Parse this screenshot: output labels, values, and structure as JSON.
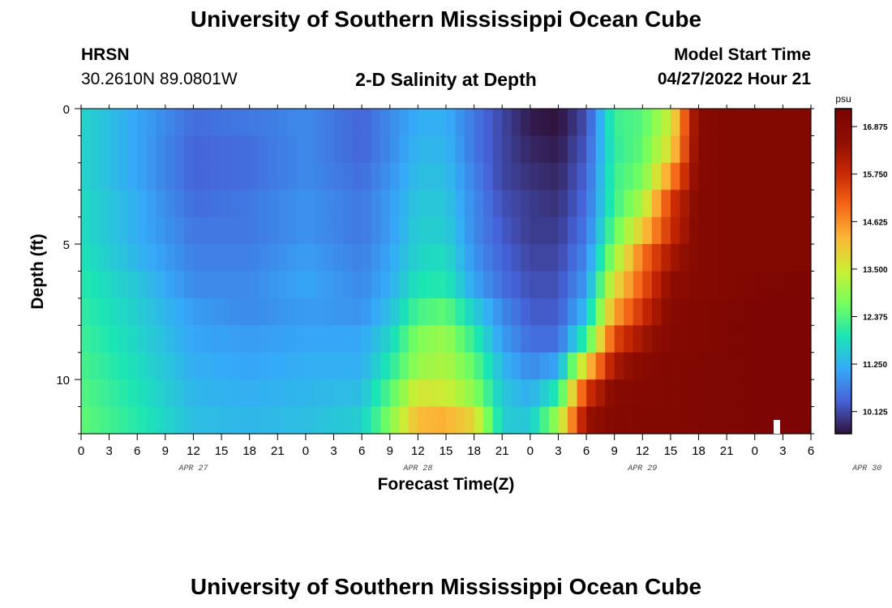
{
  "header": {
    "title": "University of Southern Mississippi Ocean Cube",
    "station": "HRSN",
    "coords": "30.2610N  89.0801W",
    "subtitle": "2-D Salinity at Depth",
    "model_label": "Model Start Time",
    "model_time": "04/27/2022 Hour 21"
  },
  "footer": {
    "title": "University of Southern Mississippi Ocean Cube"
  },
  "chart_data": {
    "type": "heatmap",
    "title": "2-D Salinity at Depth",
    "xlabel": "Forecast Time(Z)",
    "ylabel": "Depth (ft)",
    "x_ticks": [
      "0",
      "3",
      "6",
      "9",
      "12",
      "15",
      "18",
      "21",
      "0",
      "3",
      "6",
      "9",
      "12",
      "15",
      "18",
      "21",
      "0",
      "3",
      "6",
      "9",
      "12",
      "15",
      "18",
      "21",
      "0",
      "3",
      "6"
    ],
    "x_dates": [
      "APR 27",
      "APR 28",
      "APR 29",
      "APR 30"
    ],
    "y_ticks": [
      "0",
      "5",
      "10"
    ],
    "ylim": [
      0,
      12
    ],
    "colorbar": {
      "unit": "psu",
      "ticks": [
        "16.875",
        "15.750",
        "14.625",
        "13.500",
        "12.375",
        "11.250",
        "10.125"
      ],
      "min": 9.6,
      "max": 17.3
    },
    "depths_ft": [
      0.5,
      1.5,
      2.5,
      3.5,
      4.5,
      5.5,
      6.5,
      7.5,
      8.5,
      9.5,
      10.5,
      11.5
    ],
    "times_hours_from_apr27_00z": [
      0,
      6,
      12,
      18,
      24,
      30,
      33,
      36,
      39,
      42,
      45,
      48,
      51,
      54,
      57,
      60,
      63,
      66,
      69,
      72,
      78
    ],
    "salinity_psu": [
      [
        11.7,
        11.1,
        10.5,
        10.6,
        10.8,
        10.4,
        10.8,
        11.2,
        11.2,
        10.6,
        10.1,
        9.7,
        9.6,
        10.2,
        12.2,
        12.4,
        13.5,
        16.8,
        17.0,
        17.0,
        17.0
      ],
      [
        11.7,
        11.1,
        10.4,
        10.5,
        10.8,
        10.4,
        10.8,
        11.3,
        11.3,
        10.6,
        10.1,
        9.8,
        9.7,
        10.3,
        12.1,
        12.5,
        13.8,
        16.8,
        17.0,
        17.0,
        17.0
      ],
      [
        11.7,
        11.1,
        10.4,
        10.5,
        10.8,
        10.5,
        10.9,
        11.4,
        11.4,
        10.7,
        10.1,
        9.9,
        9.8,
        10.4,
        12.2,
        12.7,
        14.6,
        16.8,
        17.0,
        17.0,
        17.0
      ],
      [
        11.8,
        11.2,
        10.5,
        10.6,
        10.9,
        10.6,
        11.0,
        11.5,
        11.5,
        10.8,
        10.2,
        10.0,
        9.9,
        10.5,
        12.2,
        13.2,
        15.5,
        16.9,
        17.0,
        17.0,
        17.0
      ],
      [
        11.8,
        11.2,
        10.6,
        10.6,
        10.9,
        10.6,
        11.0,
        11.6,
        11.6,
        10.8,
        10.3,
        10.0,
        10.0,
        10.6,
        12.5,
        14.0,
        15.7,
        16.9,
        17.0,
        17.0,
        17.0
      ],
      [
        11.9,
        11.3,
        10.7,
        10.7,
        11.0,
        10.7,
        11.1,
        11.7,
        11.8,
        10.9,
        10.4,
        10.1,
        10.1,
        10.8,
        13.0,
        14.9,
        16.2,
        16.9,
        17.0,
        17.0,
        17.0
      ],
      [
        12.0,
        11.5,
        10.8,
        10.8,
        11.1,
        10.8,
        11.2,
        11.9,
        12.0,
        11.1,
        10.5,
        10.2,
        10.2,
        11.0,
        13.7,
        15.2,
        16.6,
        16.9,
        17.0,
        17.1,
        17.2
      ],
      [
        12.1,
        11.6,
        11.0,
        10.8,
        11.0,
        10.9,
        11.4,
        12.3,
        12.5,
        11.6,
        10.8,
        10.3,
        10.3,
        11.4,
        14.4,
        15.7,
        16.8,
        17.0,
        17.1,
        17.2,
        17.2
      ],
      [
        12.2,
        11.7,
        11.1,
        11.0,
        11.1,
        11.1,
        11.7,
        12.8,
        13.0,
        12.1,
        11.0,
        10.5,
        10.5,
        12.2,
        15.4,
        16.3,
        16.9,
        17.0,
        17.1,
        17.2,
        17.2
      ],
      [
        12.3,
        11.8,
        11.2,
        11.1,
        11.2,
        11.2,
        12.0,
        13.0,
        13.2,
        12.5,
        11.3,
        10.8,
        11.1,
        14.0,
        16.2,
        16.8,
        17.0,
        17.1,
        17.1,
        17.2,
        17.2
      ],
      [
        12.4,
        11.9,
        11.3,
        11.2,
        11.3,
        11.4,
        12.4,
        13.6,
        13.5,
        12.9,
        11.5,
        11.2,
        12.0,
        15.6,
        16.8,
        16.9,
        17.0,
        17.1,
        17.1,
        17.2,
        17.2
      ],
      [
        12.5,
        12.0,
        11.4,
        11.3,
        11.4,
        11.6,
        12.8,
        14.2,
        14.3,
        13.8,
        11.6,
        11.5,
        13.1,
        16.4,
        16.9,
        17.0,
        17.0,
        17.1,
        17.1,
        17.2,
        17.2
      ]
    ]
  }
}
